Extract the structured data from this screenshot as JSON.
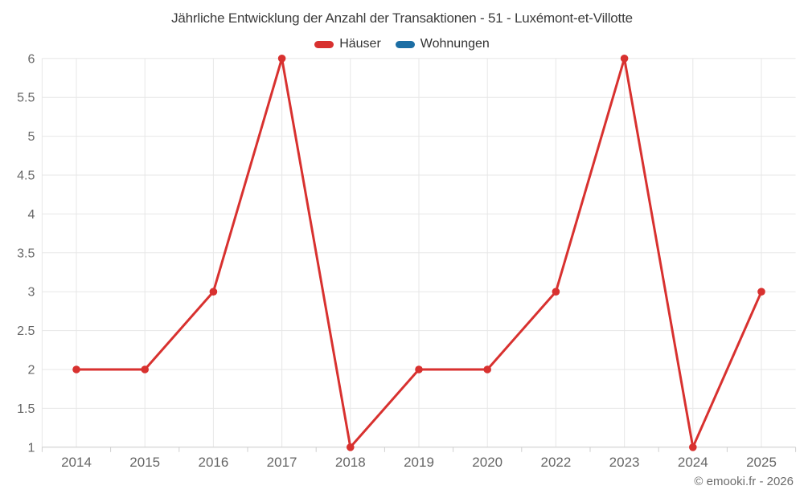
{
  "chart": {
    "title": "Jährliche Entwicklung der Anzahl der Transaktionen - 51 - Luxémont-et-Villotte",
    "credit": "© emooki.fr - 2026"
  },
  "chart_data": {
    "type": "line",
    "title": "Jährliche Entwicklung der Anzahl der Transaktionen - 51 - Luxémont-et-Villotte",
    "categories": [
      "2014",
      "2015",
      "2016",
      "2017",
      "2018",
      "2019",
      "2020",
      "2022",
      "2023",
      "2024",
      "2025"
    ],
    "series": [
      {
        "name": "Häuser",
        "color": "#d8312f",
        "values": [
          2,
          2,
          3,
          6,
          1,
          2,
          2,
          3,
          6,
          1,
          3
        ]
      },
      {
        "name": "Wohnungen",
        "color": "#1c6ea4",
        "values": []
      }
    ],
    "xlabel": "",
    "ylabel": "",
    "ylim": [
      1,
      6
    ],
    "yticks": [
      1,
      1.5,
      2,
      2.5,
      3,
      3.5,
      4,
      4.5,
      5,
      5.5,
      6
    ],
    "grid": true,
    "legend_position": "top"
  }
}
